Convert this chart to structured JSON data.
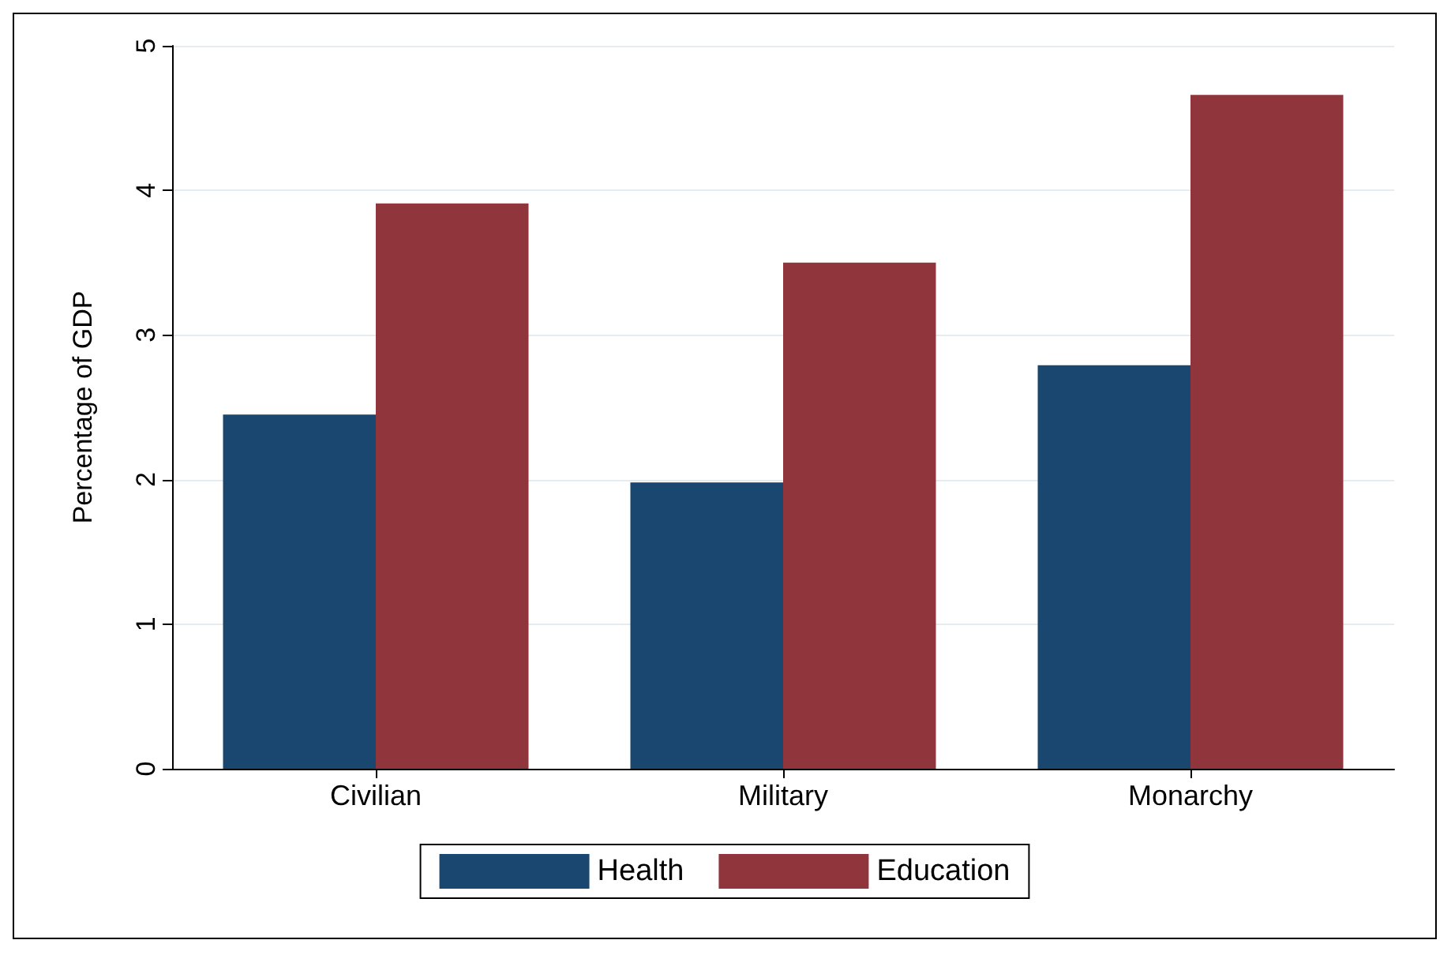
{
  "chart_data": {
    "type": "bar",
    "ylabel": "Percentage of GDP",
    "categories": [
      "Civilian",
      "Military",
      "Monarchy"
    ],
    "series": [
      {
        "name": "Health",
        "color": "#1a476f",
        "values": [
          2.45,
          1.98,
          2.79
        ]
      },
      {
        "name": "Education",
        "color": "#90353b",
        "values": [
          3.91,
          3.5,
          4.66
        ]
      }
    ],
    "ylim": [
      0,
      5
    ],
    "yticks": [
      0,
      1,
      2,
      3,
      4,
      5
    ],
    "grid": "y",
    "legend": "bottom"
  }
}
